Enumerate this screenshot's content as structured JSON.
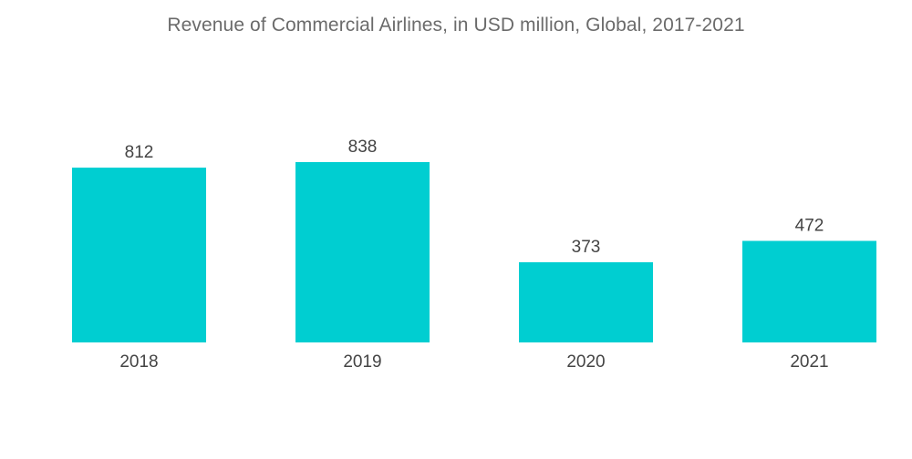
{
  "chart_data": {
    "type": "bar",
    "title": "Revenue of Commercial Airlines, in USD million, Global, 2017-2021",
    "xlabel": "",
    "ylabel": "",
    "categories": [
      "2018",
      "2019",
      "2020",
      "2021"
    ],
    "values": [
      812,
      838,
      373,
      472
    ],
    "ylim": [
      0,
      838
    ],
    "grid": false,
    "legend": "none",
    "colors": {
      "bar": "#00ced1",
      "text": "#444444",
      "title": "#6b6b6b"
    }
  }
}
